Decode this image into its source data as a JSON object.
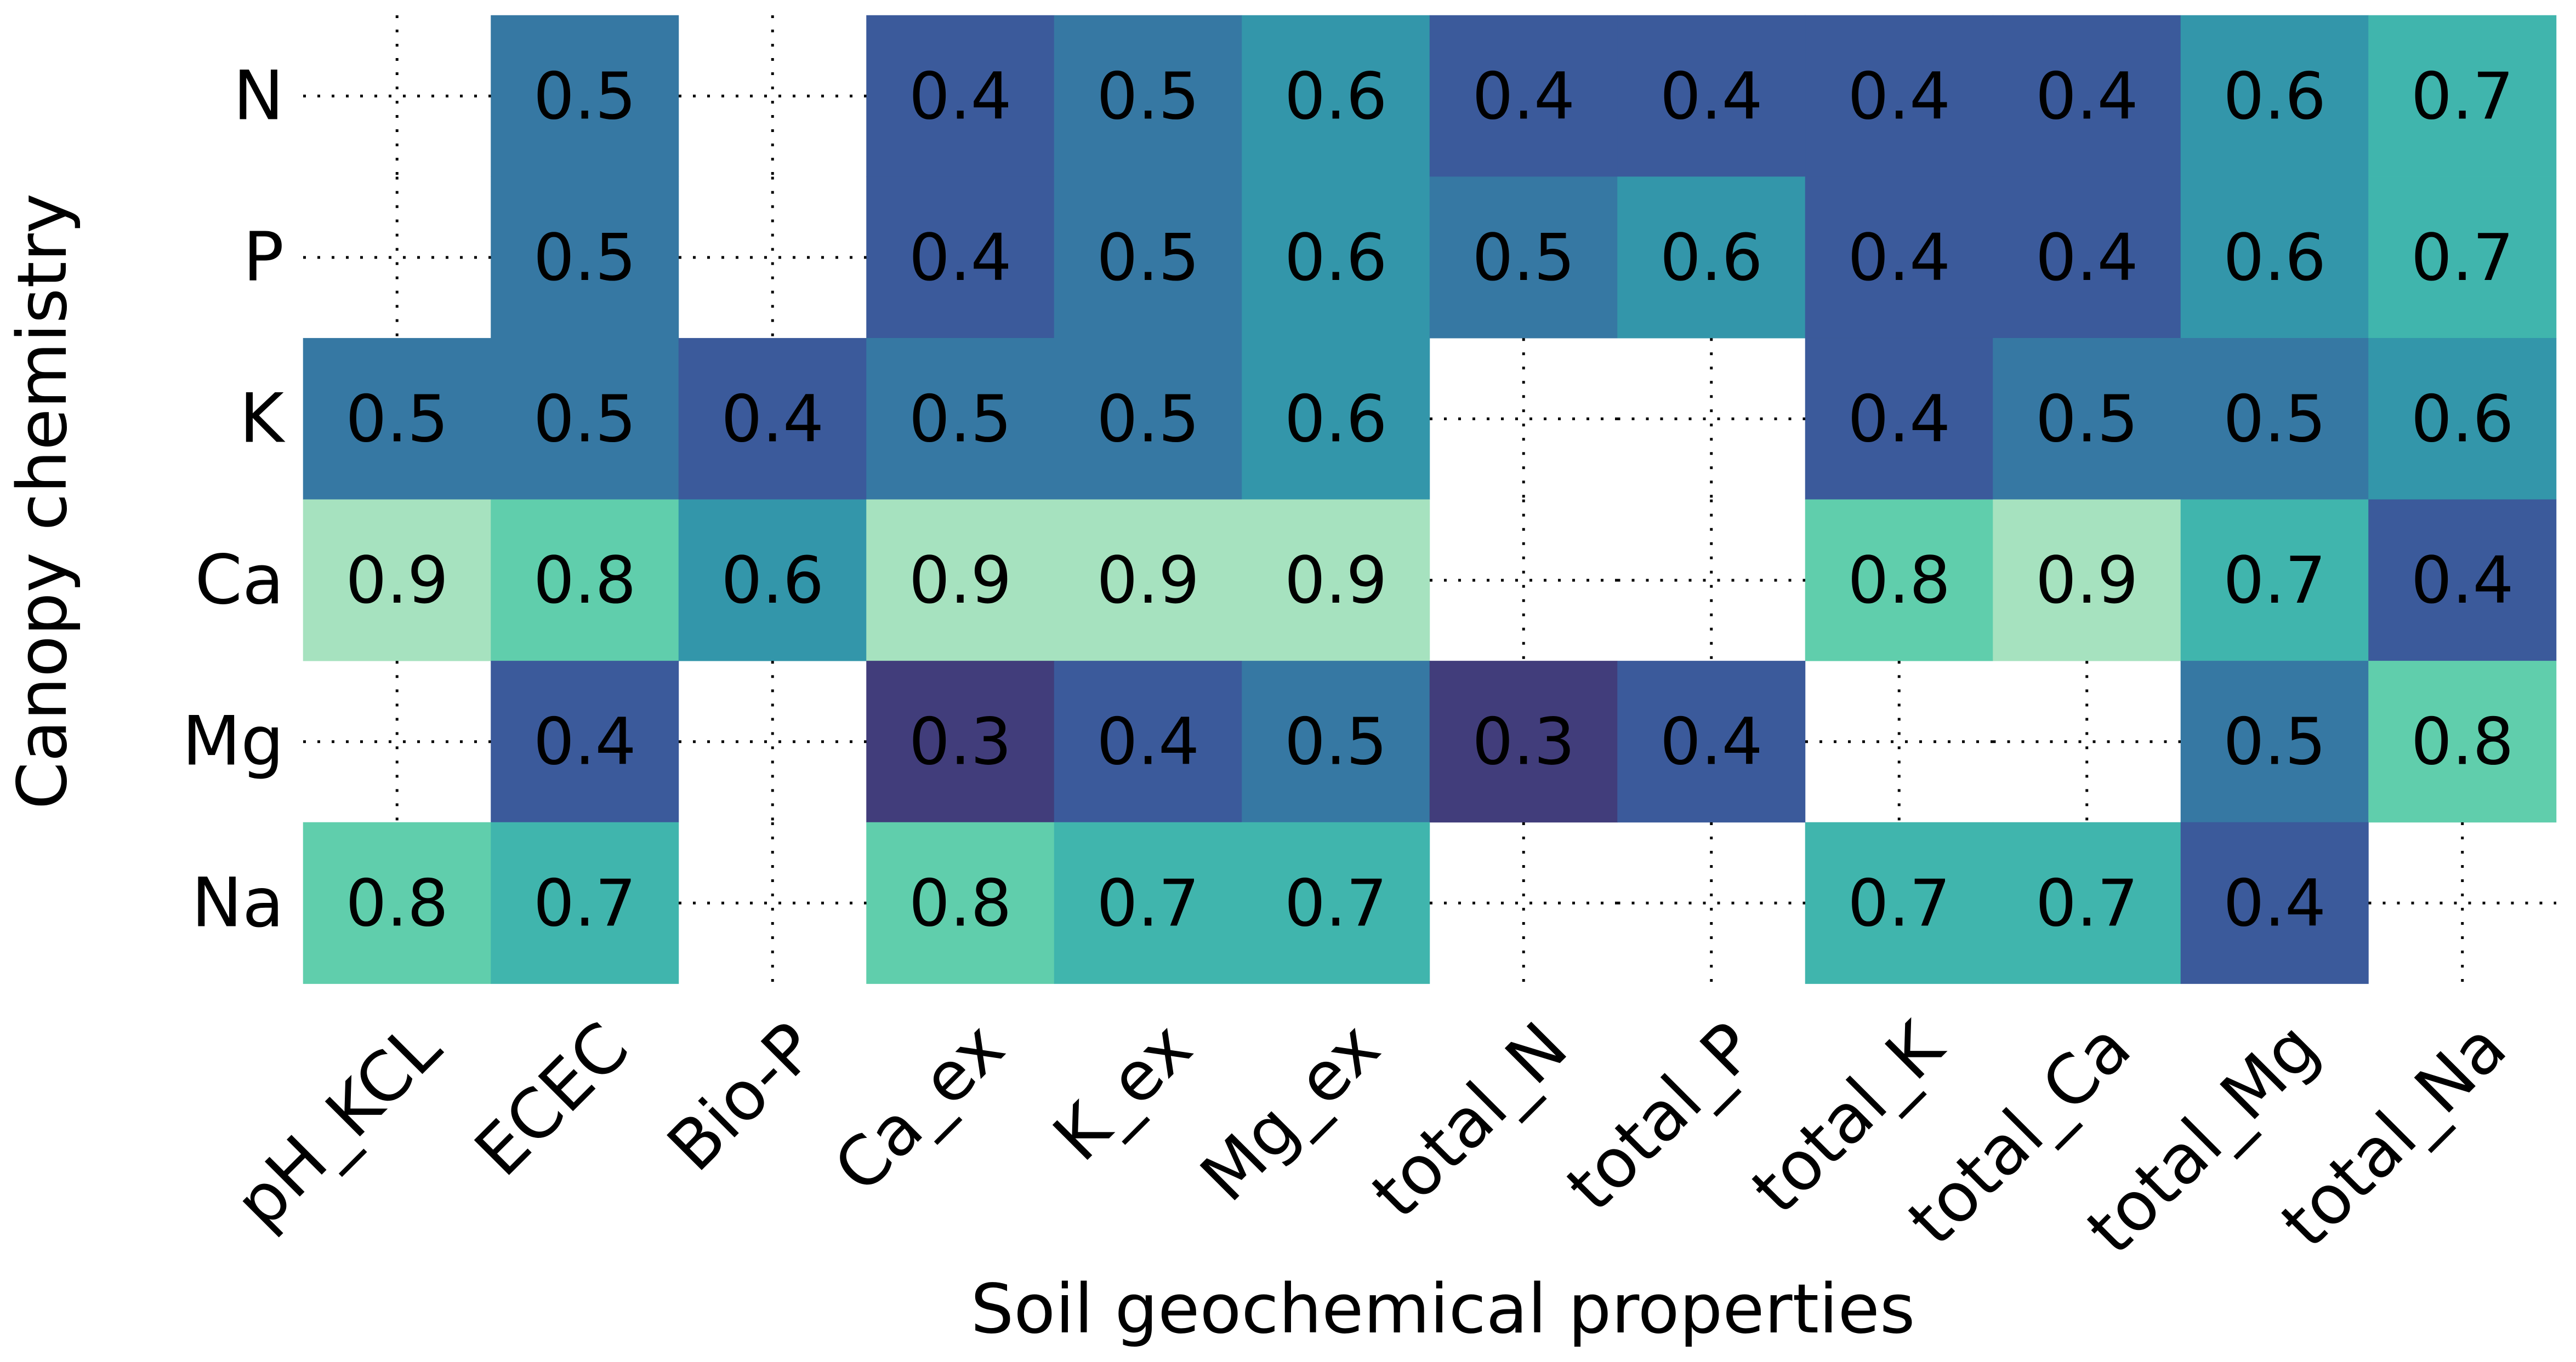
{
  "chart_data": {
    "type": "heatmap",
    "xlabel": "Soil geochemical properties",
    "ylabel": "Canopy chemistry",
    "x_categories": [
      "pH_KCL",
      "ECEC",
      "Bio-P",
      "Ca_ex",
      "K_ex",
      "Mg_ex",
      "total_N",
      "total_P",
      "total_K",
      "total_Ca",
      "total_Mg",
      "total_Na"
    ],
    "y_categories": [
      "N",
      "P",
      "K",
      "Ca",
      "Mg",
      "Na"
    ],
    "values": [
      [
        null,
        0.5,
        null,
        0.4,
        0.5,
        0.6,
        0.4,
        0.4,
        0.4,
        0.4,
        0.6,
        0.7
      ],
      [
        null,
        0.5,
        null,
        0.4,
        0.5,
        0.6,
        0.5,
        0.6,
        0.4,
        0.4,
        0.6,
        0.7
      ],
      [
        0.5,
        0.5,
        0.4,
        0.5,
        0.5,
        0.6,
        null,
        null,
        0.4,
        0.5,
        0.5,
        0.6
      ],
      [
        0.9,
        0.8,
        0.6,
        0.9,
        0.9,
        0.9,
        null,
        null,
        0.8,
        0.9,
        0.7,
        0.4
      ],
      [
        null,
        0.4,
        null,
        0.3,
        0.4,
        0.5,
        0.3,
        0.4,
        null,
        null,
        0.5,
        0.8
      ],
      [
        0.8,
        0.7,
        null,
        0.8,
        0.7,
        0.7,
        null,
        null,
        0.7,
        0.7,
        0.4,
        null
      ]
    ],
    "colorscale": {
      "0.3": "#413d7b",
      "0.4": "#3b5a9b",
      "0.5": "#3678a3",
      "0.6": "#3396aa",
      "0.7": "#40b5ad",
      "0.8": "#60ceac",
      "0.9": "#a6e2bf"
    },
    "empty_cell_style": "dotted gridlines",
    "legend": "none"
  }
}
